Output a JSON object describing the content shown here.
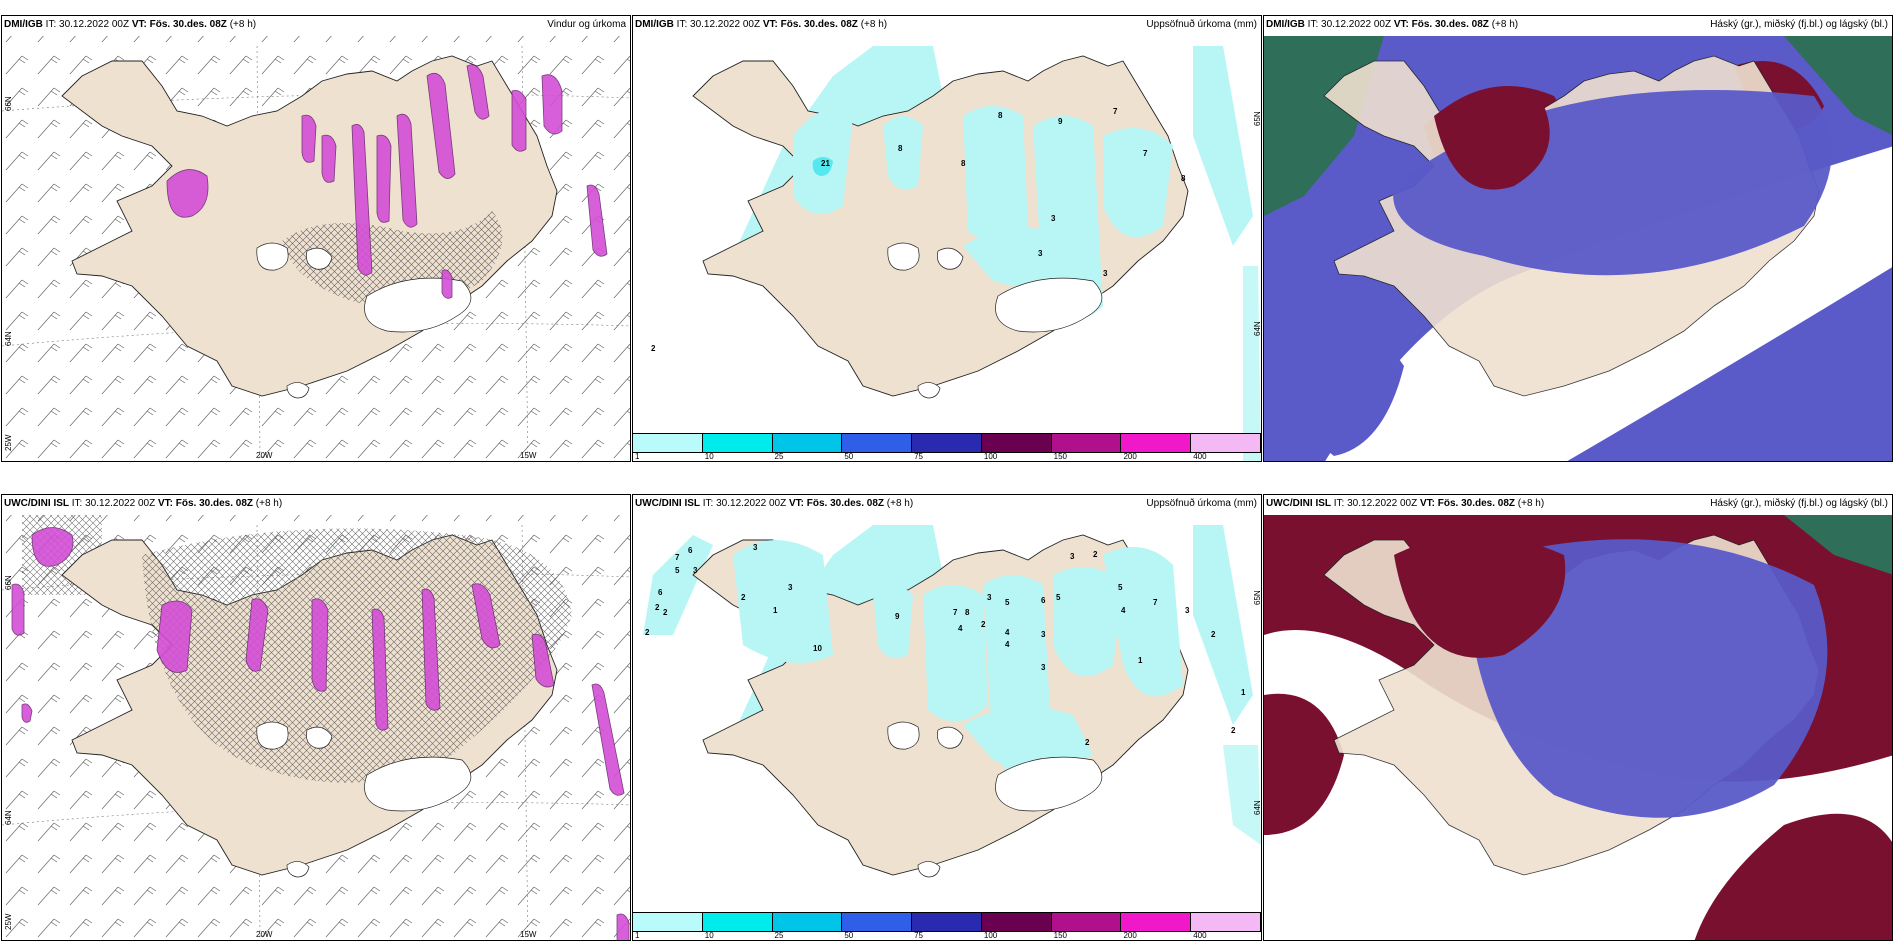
{
  "colors": {
    "land": "#efe1d0",
    "coast": "#222222",
    "precip_light": "#b8f6f6",
    "precip_cyan": "#55e8ee",
    "cloud_high": "#7a1030",
    "cloud_mid": "#5a5ac8",
    "cloud_low": "#2f6f5a",
    "rain_pink": "#d44ed6"
  },
  "legend": {
    "ticks": [
      "1",
      "10",
      "25",
      "50",
      "75",
      "100",
      "150",
      "200",
      "400"
    ],
    "colors": [
      "#b9fbfb",
      "#00ecec",
      "#00c4e8",
      "#2f5ee8",
      "#2a2ab0",
      "#6a0050",
      "#b0108c",
      "#f018c8",
      "#f4b8f4"
    ]
  },
  "panels": [
    {
      "id": "dmi-wind",
      "model": "DMI/IGB",
      "init": "IT: 30.12.2022 00Z",
      "vt_label": "VT:",
      "vt": "Fös. 30.des. 08Z",
      "lead": "(+8 h)",
      "title": "Vindur og úrkoma",
      "lon_labels": [
        "20W",
        "15W"
      ],
      "lat_labels": [
        "66N",
        "64N",
        "25W"
      ]
    },
    {
      "id": "dmi-precip",
      "model": "DMI/IGB",
      "init": "IT: 30.12.2022 00Z",
      "vt_label": "VT:",
      "vt": "Fös. 30.des. 08Z",
      "lead": "(+8 h)",
      "title": "Uppsöfnuð úrkoma (mm)",
      "lat_labels": [
        "65N",
        "64N"
      ],
      "values": [
        "8",
        "9",
        "7",
        "8",
        "7",
        "21",
        "8",
        "3",
        "3",
        "8",
        "2",
        "3"
      ]
    },
    {
      "id": "dmi-cloud",
      "model": "DMI/IGB",
      "init": "IT: 30.12.2022 00Z",
      "vt_label": "VT:",
      "vt": "Fös. 30.des. 08Z",
      "lead": "(+8 h)",
      "title": "Háský (gr.), miðský (fj.bl.) og lágský (bl.)"
    },
    {
      "id": "uwc-wind",
      "model": "UWC/DINI ISL",
      "init": "IT: 30.12.2022 00Z",
      "vt_label": "VT:",
      "vt": "Fös. 30.des. 08Z",
      "lead": "(+8 h)",
      "title": "",
      "lon_labels": [
        "20W",
        "15W"
      ],
      "lat_labels": [
        "66N",
        "64N",
        "25W"
      ]
    },
    {
      "id": "uwc-precip",
      "model": "UWC/DINI ISL",
      "init": "IT: 30.12.2022 00Z",
      "vt_label": "VT:",
      "vt": "Fös. 30.des. 08Z",
      "lead": "(+8 h)",
      "title": "Uppsöfnuð úrkoma (mm)",
      "lat_labels": [
        "65N",
        "64N"
      ],
      "values": [
        "7",
        "6",
        "5",
        "3",
        "6",
        "2",
        "2",
        "2",
        "3",
        "3",
        "2",
        "1",
        "10",
        "9",
        "7",
        "8",
        "4",
        "3",
        "5",
        "4",
        "4",
        "2",
        "6",
        "5",
        "3",
        "3",
        "3",
        "2",
        "4",
        "5",
        "7",
        "3",
        "2",
        "1",
        "2",
        "1",
        "2"
      ]
    },
    {
      "id": "uwc-cloud",
      "model": "UWC/DINI ISL",
      "init": "IT: 30.12.2022 00Z",
      "vt_label": "VT:",
      "vt": "Fös. 30.des. 08Z",
      "lead": "(+8 h)",
      "title": "Háský (gr.), miðský (fj.bl.) og lágský (bl.)"
    }
  ]
}
